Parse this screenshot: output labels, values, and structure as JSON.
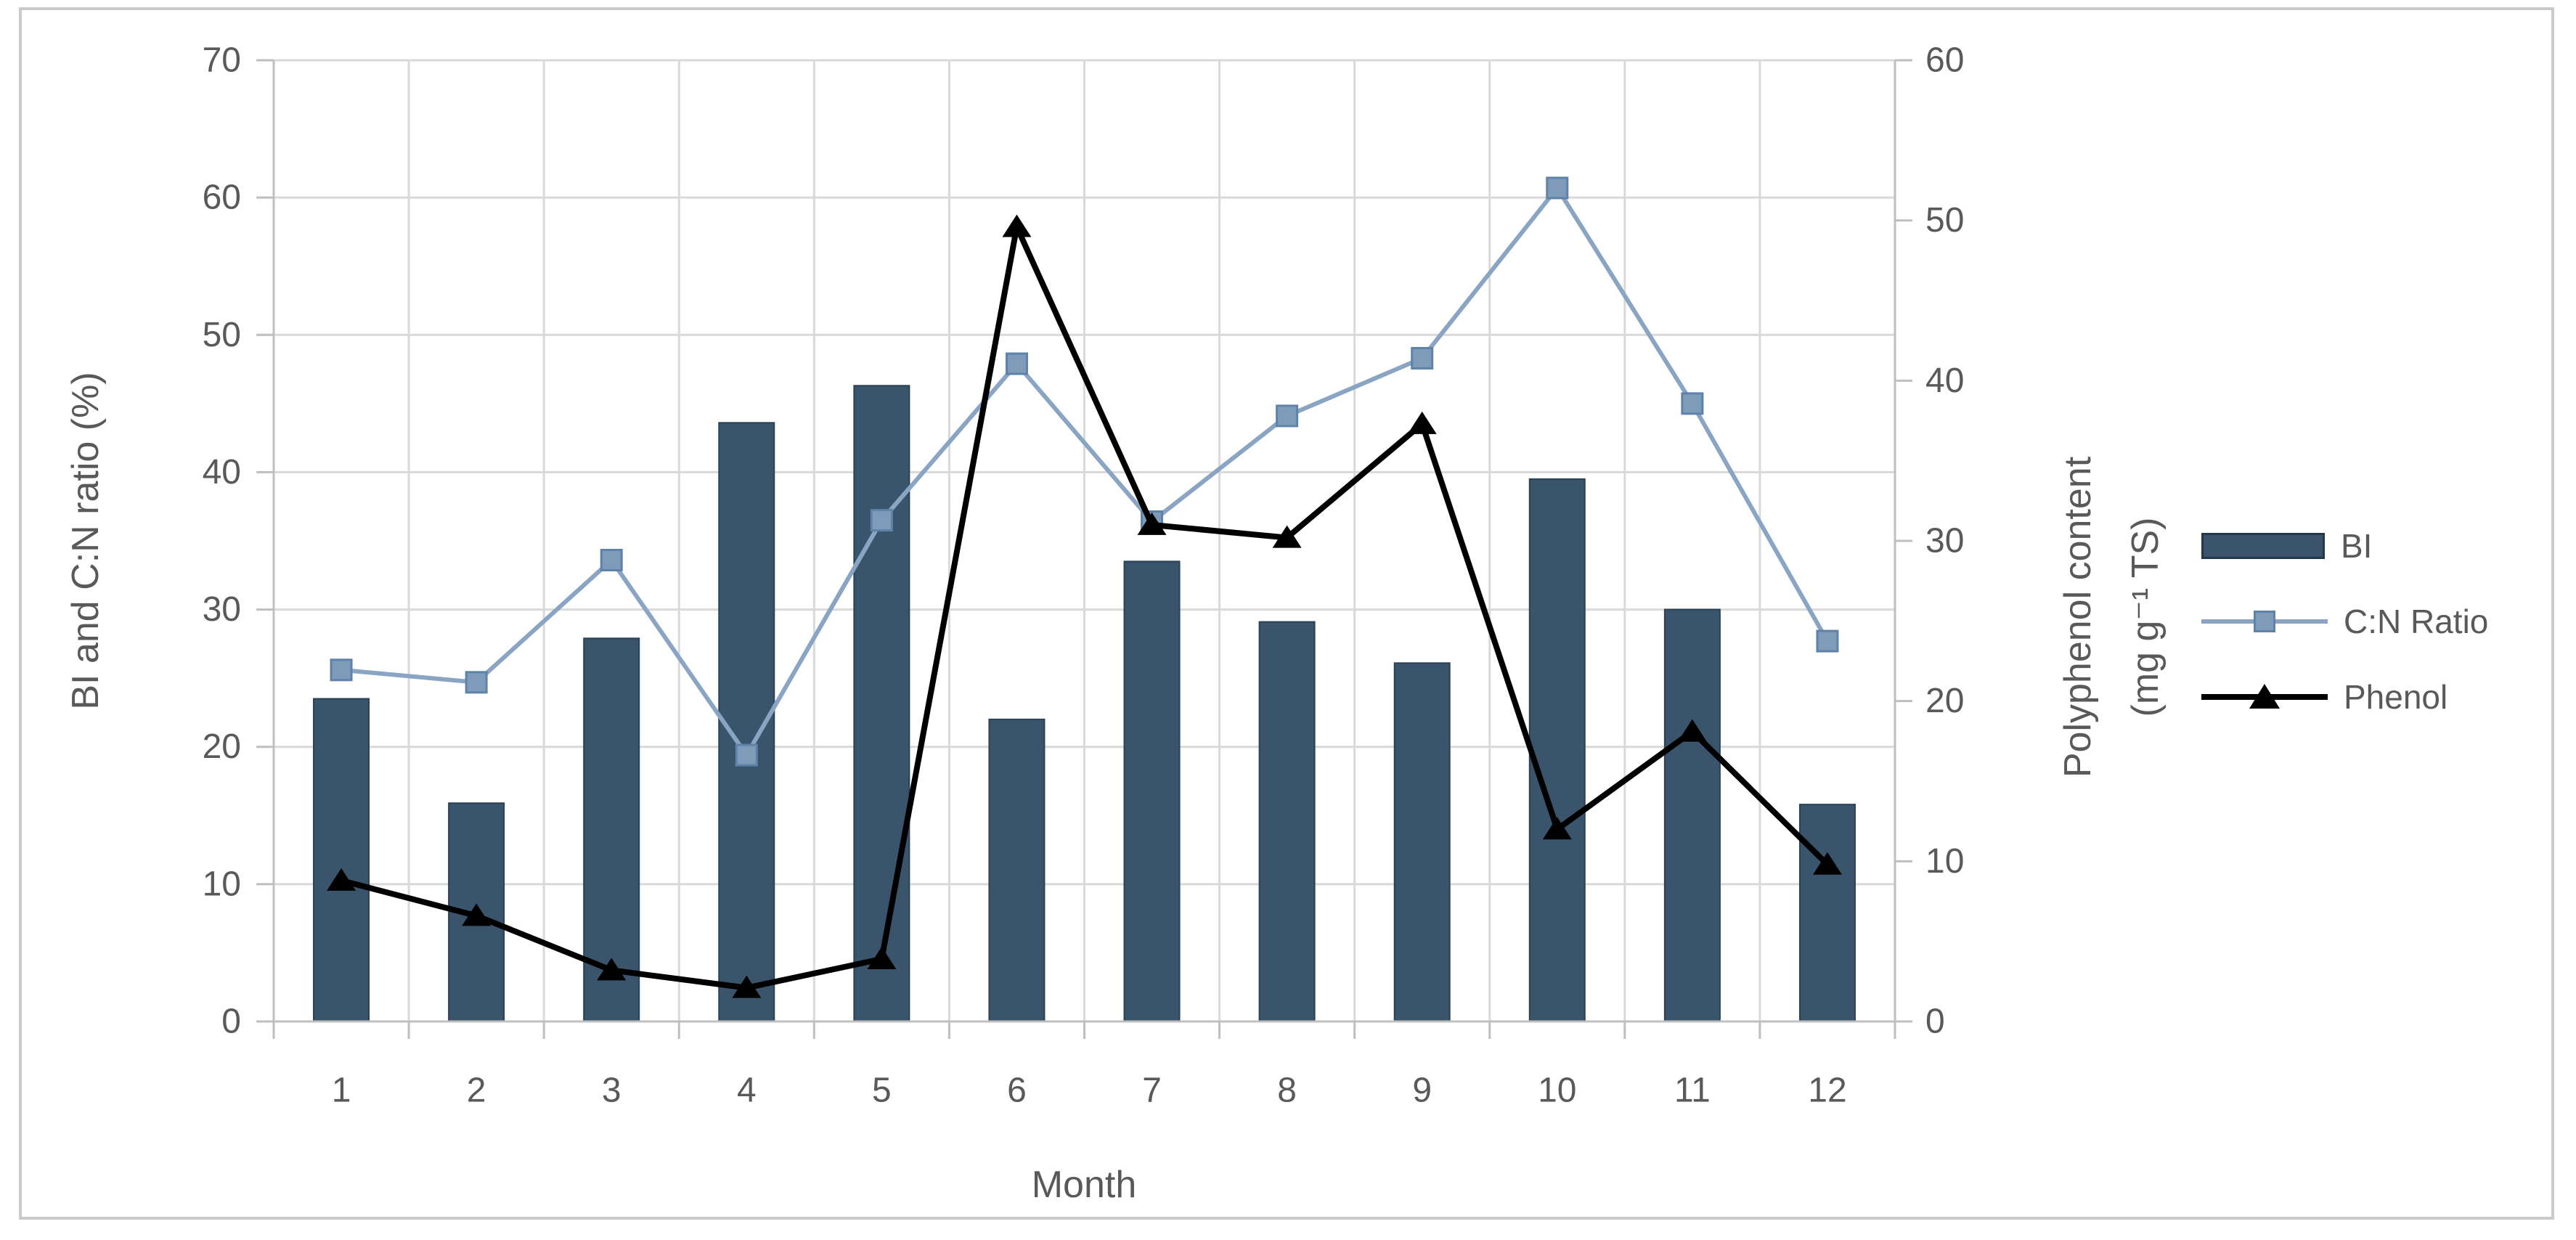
{
  "chart_data": {
    "type": "combo",
    "categories": [
      "1",
      "2",
      "3",
      "4",
      "5",
      "6",
      "7",
      "8",
      "9",
      "10",
      "11",
      "12"
    ],
    "xlabel": "Month",
    "left_axis": {
      "label": "BI and C:N ratio (%)",
      "min": 0,
      "max": 70,
      "step": 10
    },
    "right_axis": {
      "label_lines": [
        "Polyphenol content",
        "(mg g⁻¹ TS)"
      ],
      "min": 0,
      "max": 60,
      "step": 10
    },
    "series": [
      {
        "name": "BI",
        "type": "bar",
        "axis": "left",
        "color": "#3a546c",
        "values": [
          23.5,
          15.9,
          27.9,
          43.6,
          46.3,
          22.0,
          33.5,
          29.1,
          26.1,
          39.5,
          30.0,
          15.8
        ]
      },
      {
        "name": "C:N Ratio",
        "type": "line",
        "marker": "square",
        "axis": "left",
        "color": "#8aa5c3",
        "values": [
          25.6,
          24.7,
          33.6,
          19.4,
          36.5,
          47.9,
          36.4,
          44.1,
          48.3,
          60.7,
          45.0,
          27.7
        ]
      },
      {
        "name": "Phenol",
        "type": "line",
        "marker": "triangle",
        "axis": "right",
        "color": "#000000",
        "values": [
          8.8,
          6.6,
          3.2,
          2.1,
          3.9,
          49.6,
          31.0,
          30.2,
          37.3,
          12.0,
          18.1,
          9.8
        ]
      }
    ],
    "grid": true,
    "legend_position": "right"
  },
  "colors": {
    "grid": "#d9d9d9",
    "axis": "#bfbfbf",
    "text": "#595959",
    "bar_fill": "#3a546c",
    "bar_border": "#2b4156",
    "cn_line": "#8aa5c3",
    "cn_marker_fill": "#7e9bba",
    "cn_marker_border": "#5e82a8",
    "phenol_line": "#000000",
    "frame": "#c9cacb"
  }
}
